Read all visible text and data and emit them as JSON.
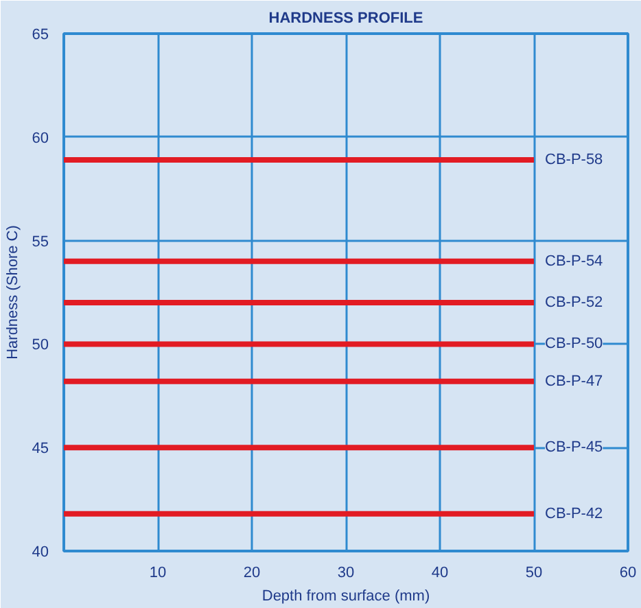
{
  "chart_data": {
    "type": "line",
    "title": "HARDNESS PROFILE",
    "xlabel": "Depth from surface (mm)",
    "ylabel": "Hardness (Shore C)",
    "xlim": [
      0,
      60
    ],
    "xticks": [
      10,
      20,
      30,
      40,
      50,
      60
    ],
    "ylim": [
      40,
      65
    ],
    "yticks": [
      40,
      45,
      50,
      55,
      60,
      65
    ],
    "grid": true,
    "marker": "none",
    "line_style": "solid",
    "x": [
      0,
      50
    ],
    "series": [
      {
        "name": "CB-P-58",
        "color": "#e21b23",
        "values": [
          58.9,
          58.9
        ]
      },
      {
        "name": "CB-P-54",
        "color": "#e21b23",
        "values": [
          54,
          54
        ]
      },
      {
        "name": "CB-P-52",
        "color": "#e21b23",
        "values": [
          52,
          52
        ]
      },
      {
        "name": "CB-P-50",
        "color": "#e21b23",
        "values": [
          50,
          50
        ]
      },
      {
        "name": "CB-P-47",
        "color": "#e21b23",
        "values": [
          48.2,
          48.2
        ]
      },
      {
        "name": "CB-P-45",
        "color": "#e21b23",
        "values": [
          45,
          45
        ]
      },
      {
        "name": "CB-P-42",
        "color": "#e21b23",
        "values": [
          41.8,
          41.8
        ]
      }
    ]
  }
}
